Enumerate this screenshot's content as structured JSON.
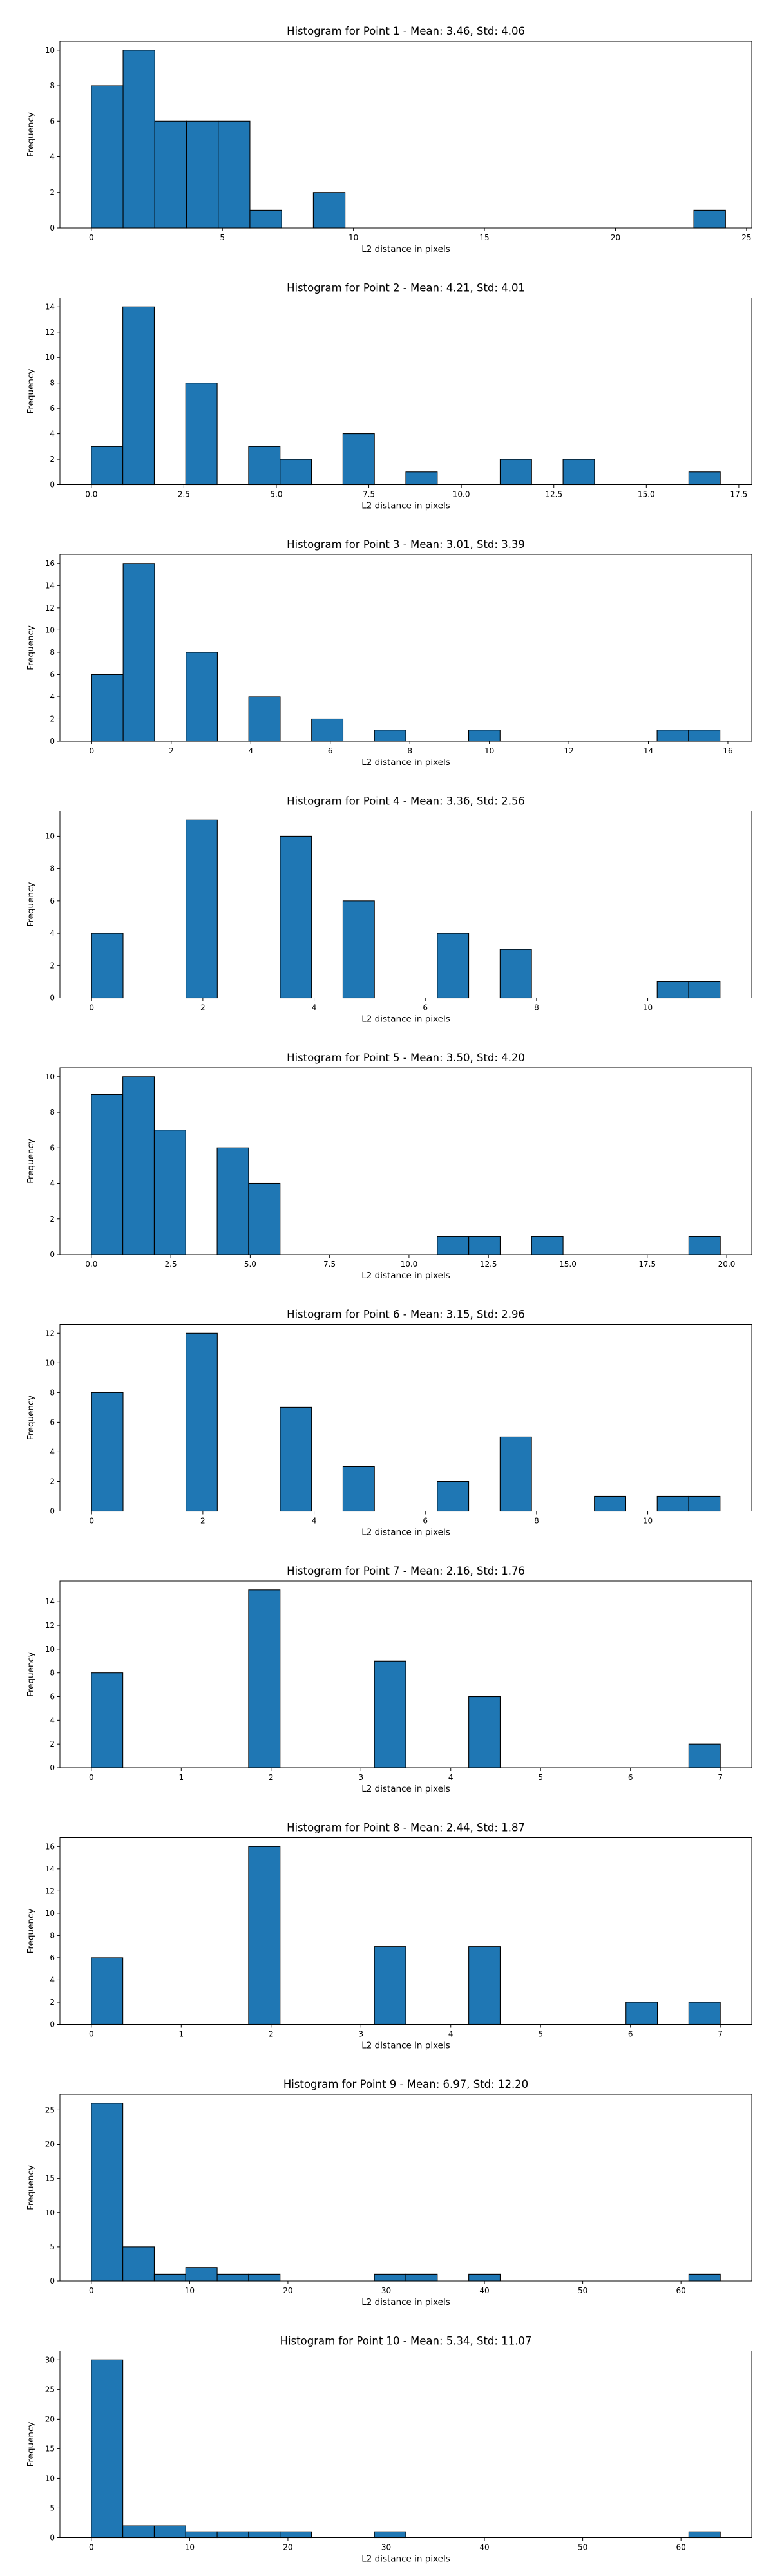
{
  "chart_data": [
    {
      "type": "bar",
      "title": "Histogram for Point 1 - Mean: 3.46, Std: 4.06",
      "xlabel": "L2 distance in pixels",
      "ylabel": "Frequency",
      "xlim": [
        -1.2,
        25.2
      ],
      "ylim": [
        0,
        10.5
      ],
      "xticks": [
        0,
        5,
        10,
        15,
        20,
        25
      ],
      "xtick_labels": [
        "0",
        "5",
        "10",
        "15",
        "20",
        "25"
      ],
      "yticks": [
        0,
        2,
        4,
        6,
        8,
        10
      ],
      "ytick_labels": [
        "0",
        "2",
        "4",
        "6",
        "8",
        "10"
      ],
      "bin_start": 0,
      "bin_width": 1.21,
      "counts": [
        8,
        10,
        6,
        6,
        6,
        1,
        0,
        2,
        0,
        0,
        0,
        0,
        0,
        0,
        0,
        0,
        0,
        0,
        0,
        1
      ],
      "grid": false
    },
    {
      "type": "bar",
      "title": "Histogram for Point 2 - Mean: 4.21, Std: 4.01",
      "xlabel": "L2 distance in pixels",
      "ylabel": "Frequency",
      "xlim": [
        -0.85,
        17.85
      ],
      "ylim": [
        0,
        14.7
      ],
      "xticks": [
        0,
        2.5,
        5,
        7.5,
        10,
        12.5,
        15,
        17.5
      ],
      "xtick_labels": [
        "0.0",
        "2.5",
        "5.0",
        "7.5",
        "10.0",
        "12.5",
        "15.0",
        "17.5"
      ],
      "yticks": [
        0,
        2,
        4,
        6,
        8,
        10,
        12,
        14
      ],
      "ytick_labels": [
        "0",
        "2",
        "4",
        "6",
        "8",
        "10",
        "12",
        "14"
      ],
      "bin_start": 0,
      "bin_width": 0.85,
      "counts": [
        3,
        14,
        0,
        8,
        0,
        3,
        2,
        0,
        4,
        0,
        1,
        0,
        0,
        2,
        0,
        2,
        0,
        0,
        0,
        1
      ],
      "grid": false
    },
    {
      "type": "bar",
      "title": "Histogram for Point 3 - Mean: 3.01, Std: 3.39",
      "xlabel": "L2 distance in pixels",
      "ylabel": "Frequency",
      "xlim": [
        -0.8,
        16.6
      ],
      "ylim": [
        0,
        16.8
      ],
      "xticks": [
        0,
        2,
        4,
        6,
        8,
        10,
        12,
        14,
        16
      ],
      "xtick_labels": [
        "0",
        "2",
        "4",
        "6",
        "8",
        "10",
        "12",
        "14",
        "16"
      ],
      "yticks": [
        0,
        2,
        4,
        6,
        8,
        10,
        12,
        14,
        16
      ],
      "ytick_labels": [
        "0",
        "2",
        "4",
        "6",
        "8",
        "10",
        "12",
        "14",
        "16"
      ],
      "bin_start": 0,
      "bin_width": 0.79,
      "counts": [
        6,
        16,
        0,
        8,
        0,
        4,
        0,
        2,
        0,
        1,
        0,
        0,
        1,
        0,
        0,
        0,
        0,
        0,
        1,
        1
      ],
      "grid": false
    },
    {
      "type": "bar",
      "title": "Histogram for Point 4 - Mean: 3.36, Std: 2.56",
      "xlabel": "L2 distance in pixels",
      "ylabel": "Frequency",
      "xlim": [
        -0.57,
        11.87
      ],
      "ylim": [
        0,
        11.55
      ],
      "xticks": [
        0,
        2,
        4,
        6,
        8,
        10
      ],
      "xtick_labels": [
        "0",
        "2",
        "4",
        "6",
        "8",
        "10"
      ],
      "yticks": [
        0,
        2,
        4,
        6,
        8,
        10
      ],
      "ytick_labels": [
        "0",
        "2",
        "4",
        "6",
        "8",
        "10"
      ],
      "bin_start": 0,
      "bin_width": 0.565,
      "counts": [
        4,
        0,
        0,
        11,
        0,
        0,
        10,
        0,
        6,
        0,
        0,
        4,
        0,
        3,
        0,
        0,
        0,
        0,
        1,
        1
      ],
      "grid": false
    },
    {
      "type": "bar",
      "title": "Histogram for Point 5 - Mean: 3.50, Std: 4.20",
      "xlabel": "L2 distance in pixels",
      "ylabel": "Frequency",
      "xlim": [
        -0.99,
        20.79
      ],
      "ylim": [
        0,
        10.5
      ],
      "xticks": [
        0,
        2.5,
        5,
        7.5,
        10,
        12.5,
        15,
        17.5,
        20
      ],
      "xtick_labels": [
        "0.0",
        "2.5",
        "5.0",
        "7.5",
        "10.0",
        "12.5",
        "15.0",
        "17.5",
        "20.0"
      ],
      "yticks": [
        0,
        2,
        4,
        6,
        8,
        10
      ],
      "ytick_labels": [
        "0",
        "2",
        "4",
        "6",
        "8",
        "10"
      ],
      "bin_start": 0,
      "bin_width": 0.99,
      "counts": [
        9,
        10,
        7,
        0,
        6,
        4,
        0,
        0,
        0,
        0,
        0,
        1,
        1,
        0,
        1,
        0,
        0,
        0,
        0,
        1
      ],
      "grid": false
    },
    {
      "type": "bar",
      "title": "Histogram for Point 6 - Mean: 3.15, Std: 2.96",
      "xlabel": "L2 distance in pixels",
      "ylabel": "Frequency",
      "xlim": [
        -0.57,
        11.87
      ],
      "ylim": [
        0,
        12.6
      ],
      "xticks": [
        0,
        2,
        4,
        6,
        8,
        10
      ],
      "xtick_labels": [
        "0",
        "2",
        "4",
        "6",
        "8",
        "10"
      ],
      "yticks": [
        0,
        2,
        4,
        6,
        8,
        10,
        12
      ],
      "ytick_labels": [
        "0",
        "2",
        "4",
        "6",
        "8",
        "10",
        "12"
      ],
      "bin_start": 0,
      "bin_width": 0.565,
      "counts": [
        8,
        0,
        0,
        12,
        0,
        0,
        7,
        0,
        3,
        0,
        0,
        2,
        0,
        5,
        0,
        0,
        1,
        0,
        1,
        1
      ],
      "grid": false
    },
    {
      "type": "bar",
      "title": "Histogram for Point 7 - Mean: 2.16, Std: 1.76",
      "xlabel": "L2 distance in pixels",
      "ylabel": "Frequency",
      "xlim": [
        -0.35,
        7.35
      ],
      "ylim": [
        0,
        15.75
      ],
      "xticks": [
        0,
        1,
        2,
        3,
        4,
        5,
        6,
        7
      ],
      "xtick_labels": [
        "0",
        "1",
        "2",
        "3",
        "4",
        "5",
        "6",
        "7"
      ],
      "yticks": [
        0,
        2,
        4,
        6,
        8,
        10,
        12,
        14
      ],
      "ytick_labels": [
        "0",
        "2",
        "4",
        "6",
        "8",
        "10",
        "12",
        "14"
      ],
      "bin_start": 0,
      "bin_width": 0.35,
      "counts": [
        8,
        0,
        0,
        0,
        0,
        15,
        0,
        0,
        0,
        9,
        0,
        0,
        6,
        0,
        0,
        0,
        0,
        0,
        0,
        2
      ],
      "grid": false
    },
    {
      "type": "bar",
      "title": "Histogram for Point 8 - Mean: 2.44, Std: 1.87",
      "xlabel": "L2 distance in pixels",
      "ylabel": "Frequency",
      "xlim": [
        -0.35,
        7.35
      ],
      "ylim": [
        0,
        16.8
      ],
      "xticks": [
        0,
        1,
        2,
        3,
        4,
        5,
        6,
        7
      ],
      "xtick_labels": [
        "0",
        "1",
        "2",
        "3",
        "4",
        "5",
        "6",
        "7"
      ],
      "yticks": [
        0,
        2,
        4,
        6,
        8,
        10,
        12,
        14,
        16
      ],
      "ytick_labels": [
        "0",
        "2",
        "4",
        "6",
        "8",
        "10",
        "12",
        "14",
        "16"
      ],
      "bin_start": 0,
      "bin_width": 0.35,
      "counts": [
        6,
        0,
        0,
        0,
        0,
        16,
        0,
        0,
        0,
        7,
        0,
        0,
        7,
        0,
        0,
        0,
        0,
        2,
        0,
        2
      ],
      "grid": false
    },
    {
      "type": "bar",
      "title": "Histogram for Point 9 - Mean: 6.97, Std: 12.20",
      "xlabel": "L2 distance in pixels",
      "ylabel": "Frequency",
      "xlim": [
        -3.2,
        67.2
      ],
      "ylim": [
        0,
        27.3
      ],
      "xticks": [
        0,
        10,
        20,
        30,
        40,
        50,
        60
      ],
      "xtick_labels": [
        "0",
        "10",
        "20",
        "30",
        "40",
        "50",
        "60"
      ],
      "yticks": [
        0,
        5,
        10,
        15,
        20,
        25
      ],
      "ytick_labels": [
        "0",
        "5",
        "10",
        "15",
        "20",
        "25"
      ],
      "bin_start": 0,
      "bin_width": 3.2,
      "counts": [
        26,
        5,
        1,
        2,
        1,
        1,
        0,
        0,
        0,
        1,
        1,
        0,
        1,
        0,
        0,
        0,
        0,
        0,
        0,
        1
      ],
      "grid": false
    },
    {
      "type": "bar",
      "title": "Histogram for Point 10 - Mean: 5.34, Std: 11.07",
      "xlabel": "L2 distance in pixels",
      "ylabel": "Frequency",
      "xlim": [
        -3.2,
        67.2
      ],
      "ylim": [
        0,
        31.5
      ],
      "xticks": [
        0,
        10,
        20,
        30,
        40,
        50,
        60
      ],
      "xtick_labels": [
        "0",
        "10",
        "20",
        "30",
        "40",
        "50",
        "60"
      ],
      "yticks": [
        0,
        5,
        10,
        15,
        20,
        25,
        30
      ],
      "ytick_labels": [
        "0",
        "5",
        "10",
        "15",
        "20",
        "25",
        "30"
      ],
      "bin_start": 0,
      "bin_width": 3.2,
      "counts": [
        30,
        2,
        2,
        1,
        1,
        1,
        1,
        0,
        0,
        1,
        0,
        0,
        0,
        0,
        0,
        0,
        0,
        0,
        0,
        1
      ],
      "grid": false
    }
  ]
}
